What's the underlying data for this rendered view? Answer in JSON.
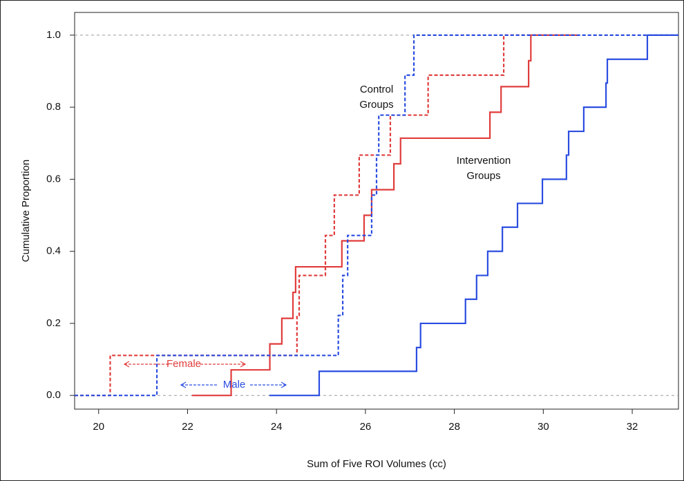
{
  "chart_data": {
    "type": "step",
    "x_label": "Sum of Five ROI Volumes (cc)",
    "y_label": "Cumulative Proportion",
    "xlim": [
      19.46,
      33.04
    ],
    "ylim": [
      -0.038,
      1.063
    ],
    "xticks": [
      20,
      22,
      24,
      26,
      28,
      30,
      32
    ],
    "yticks": [
      {
        "value": 0,
        "label": "0.0"
      },
      {
        "value": 0.2,
        "label": "0.2"
      },
      {
        "value": 0.4,
        "label": "0.4"
      },
      {
        "value": 0.6,
        "label": "0.6"
      },
      {
        "value": 0.8,
        "label": "0.8"
      },
      {
        "value": 1,
        "label": "1.0"
      }
    ],
    "hlines": [
      0,
      1
    ],
    "series": [
      {
        "color": "#e03c3c",
        "dash": false,
        "x": [
          22.1,
          22.98,
          23.85,
          24.12,
          24.37,
          24.43,
          25.47,
          25.97,
          26.14,
          26.64,
          26.79,
          28.8,
          29.05,
          29.67,
          29.72,
          30.76
        ],
        "values": [
          0,
          0.071,
          0.143,
          0.214,
          0.286,
          0.357,
          0.429,
          0.5,
          0.571,
          0.643,
          0.714,
          0.786,
          0.857,
          0.929,
          1,
          1
        ]
      },
      {
        "color": "#e03c3c",
        "dash": true,
        "x": [
          19.46,
          20.26,
          24.46,
          24.51,
          25.1,
          25.3,
          25.86,
          26.56,
          27.41,
          29.11,
          30.76
        ],
        "values": [
          0,
          0.111,
          0.222,
          0.333,
          0.444,
          0.556,
          0.667,
          0.778,
          0.889,
          1,
          1
        ]
      },
      {
        "color": "#2a4de0",
        "dash": true,
        "x": [
          19.46,
          21.31,
          25.39,
          25.49,
          25.6,
          26.14,
          26.25,
          26.3,
          26.89,
          27.09,
          33.04
        ],
        "values": [
          0,
          0.111,
          0.222,
          0.333,
          0.444,
          0.556,
          0.667,
          0.778,
          0.889,
          1,
          1
        ]
      },
      {
        "color": "#2a4de0",
        "dash": false,
        "x": [
          23.84,
          24.96,
          27.15,
          27.24,
          28.25,
          28.5,
          28.75,
          29.08,
          29.42,
          29.98,
          30.52,
          30.57,
          30.91,
          31.41,
          31.44,
          32.34,
          33.04
        ],
        "values": [
          0,
          0.067,
          0.133,
          0.2,
          0.267,
          0.333,
          0.4,
          0.467,
          0.533,
          0.6,
          0.667,
          0.733,
          0.8,
          0.867,
          0.933,
          1,
          1
        ]
      }
    ],
    "annotations": [
      {
        "lines": [
          "Control",
          "Groups"
        ],
        "color": "#111111"
      },
      {
        "lines": [
          "Intervention",
          "Groups"
        ],
        "color": "#111111"
      },
      {
        "lines": [
          "Female"
        ],
        "color": "#e03c3c"
      },
      {
        "lines": [
          "Male"
        ],
        "color": "#2a4de0"
      }
    ]
  }
}
